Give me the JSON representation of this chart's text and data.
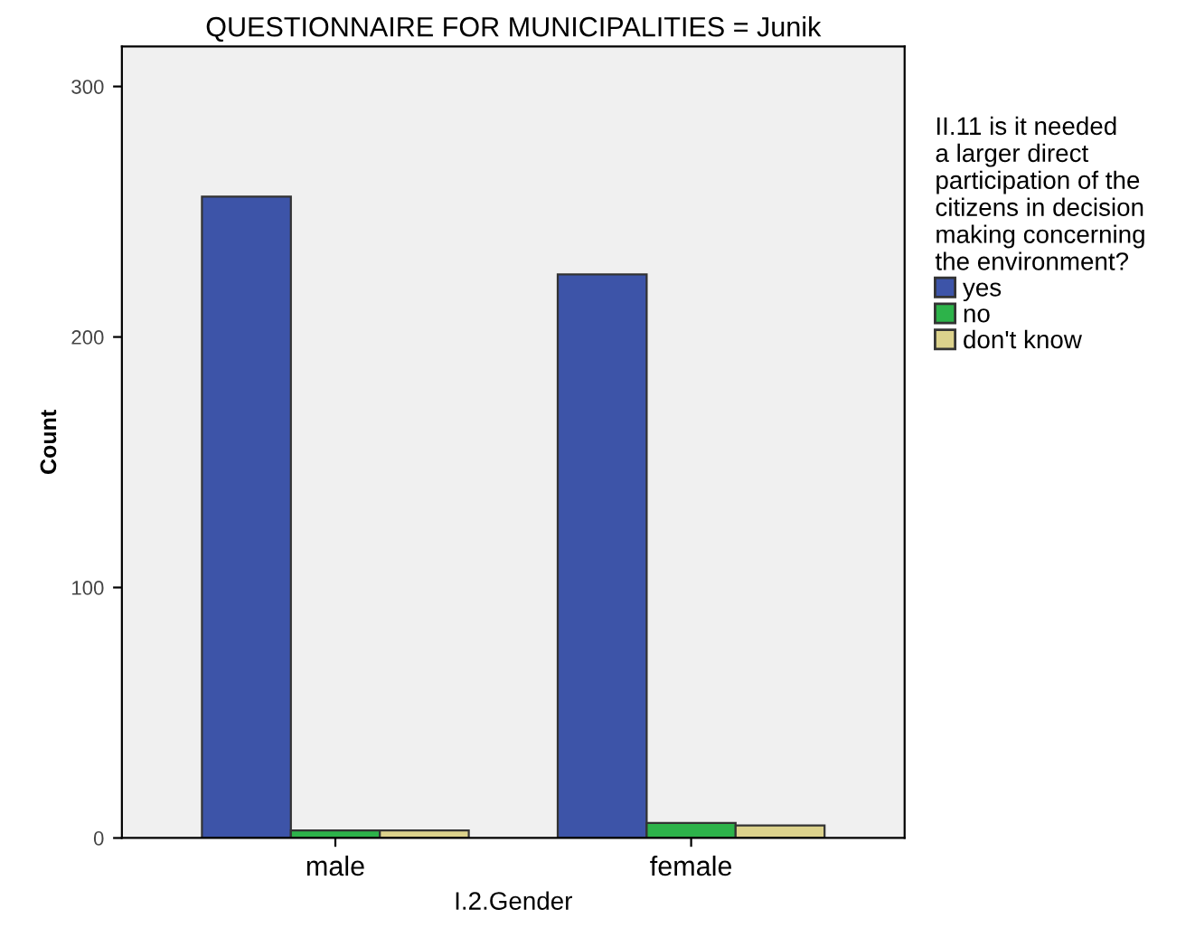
{
  "chart_data": {
    "type": "bar",
    "title": "QUESTIONNAIRE FOR MUNICIPALITIES = Junik",
    "xlabel": "I.2.Gender",
    "ylabel": "Count",
    "legend_title": "II.11 is it needed\na larger direct\nparticipation of the\ncitizens in decision\nmaking concerning\nthe environment?",
    "categories": [
      "male",
      "female"
    ],
    "series": [
      {
        "name": "yes",
        "color": "#3d54a8",
        "values": [
          256,
          225
        ]
      },
      {
        "name": "no",
        "color": "#2db34a",
        "values": [
          3,
          6
        ]
      },
      {
        "name": "don't know",
        "color": "#dcd28c",
        "values": [
          3,
          5
        ]
      }
    ],
    "ylim": [
      0,
      316
    ],
    "yticks": [
      0,
      100,
      200,
      300
    ],
    "grid": false,
    "legend": "right"
  }
}
